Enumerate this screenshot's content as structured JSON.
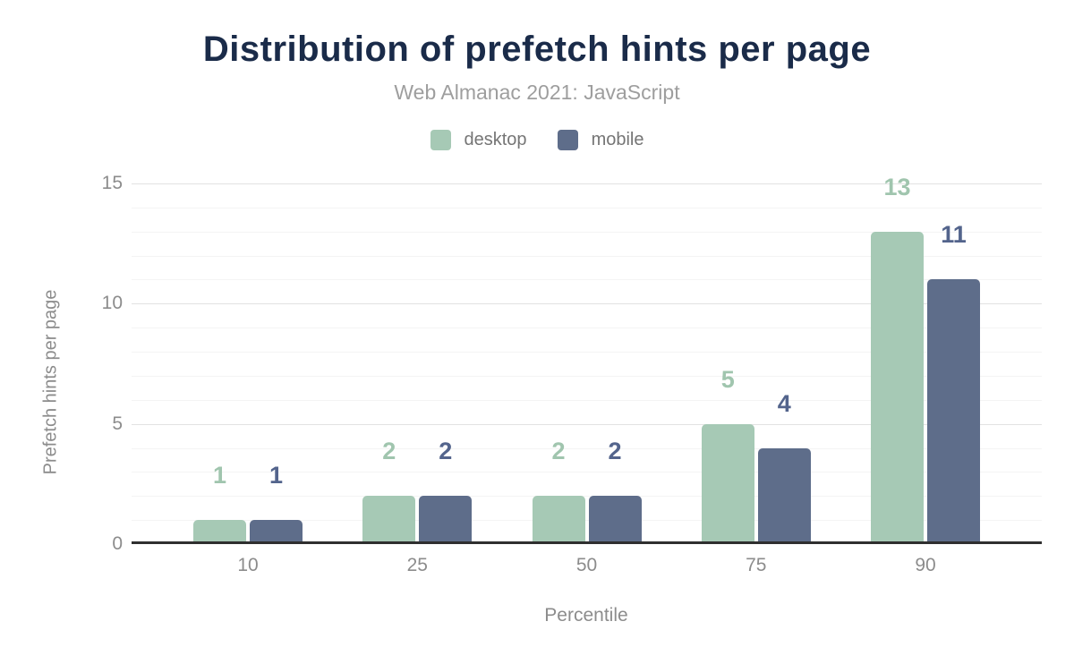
{
  "chart_data": {
    "type": "bar",
    "title": "Distribution of prefetch hints per page",
    "subtitle": "Web Almanac 2021: JavaScript",
    "categories": [
      "10",
      "25",
      "50",
      "75",
      "90"
    ],
    "series": [
      {
        "name": "desktop",
        "color": "#a6c9b5",
        "label_color": "#a0c5ae",
        "values": [
          1,
          2,
          2,
          5,
          13
        ]
      },
      {
        "name": "mobile",
        "color": "#5e6d8a",
        "label_color": "#53648c",
        "values": [
          1,
          2,
          2,
          4,
          11
        ]
      }
    ],
    "xlabel": "Percentile",
    "ylabel": "Prefetch hints per page",
    "ylim": [
      0,
      15
    ],
    "yticks": [
      0,
      5,
      10,
      15
    ],
    "minor_grid_step": 1,
    "grid": true,
    "legend_position": "top",
    "data_labels": true
  },
  "colors": {
    "title": "#1a2b49",
    "subtitle_text": "#9e9e9e",
    "axis_text": "#8c8c8c",
    "legend_text": "#757575",
    "axis_line": "#2f2f2f",
    "grid_major": "#e2e2e2",
    "grid_minor": "#f4f4f4",
    "background": "#ffffff"
  }
}
